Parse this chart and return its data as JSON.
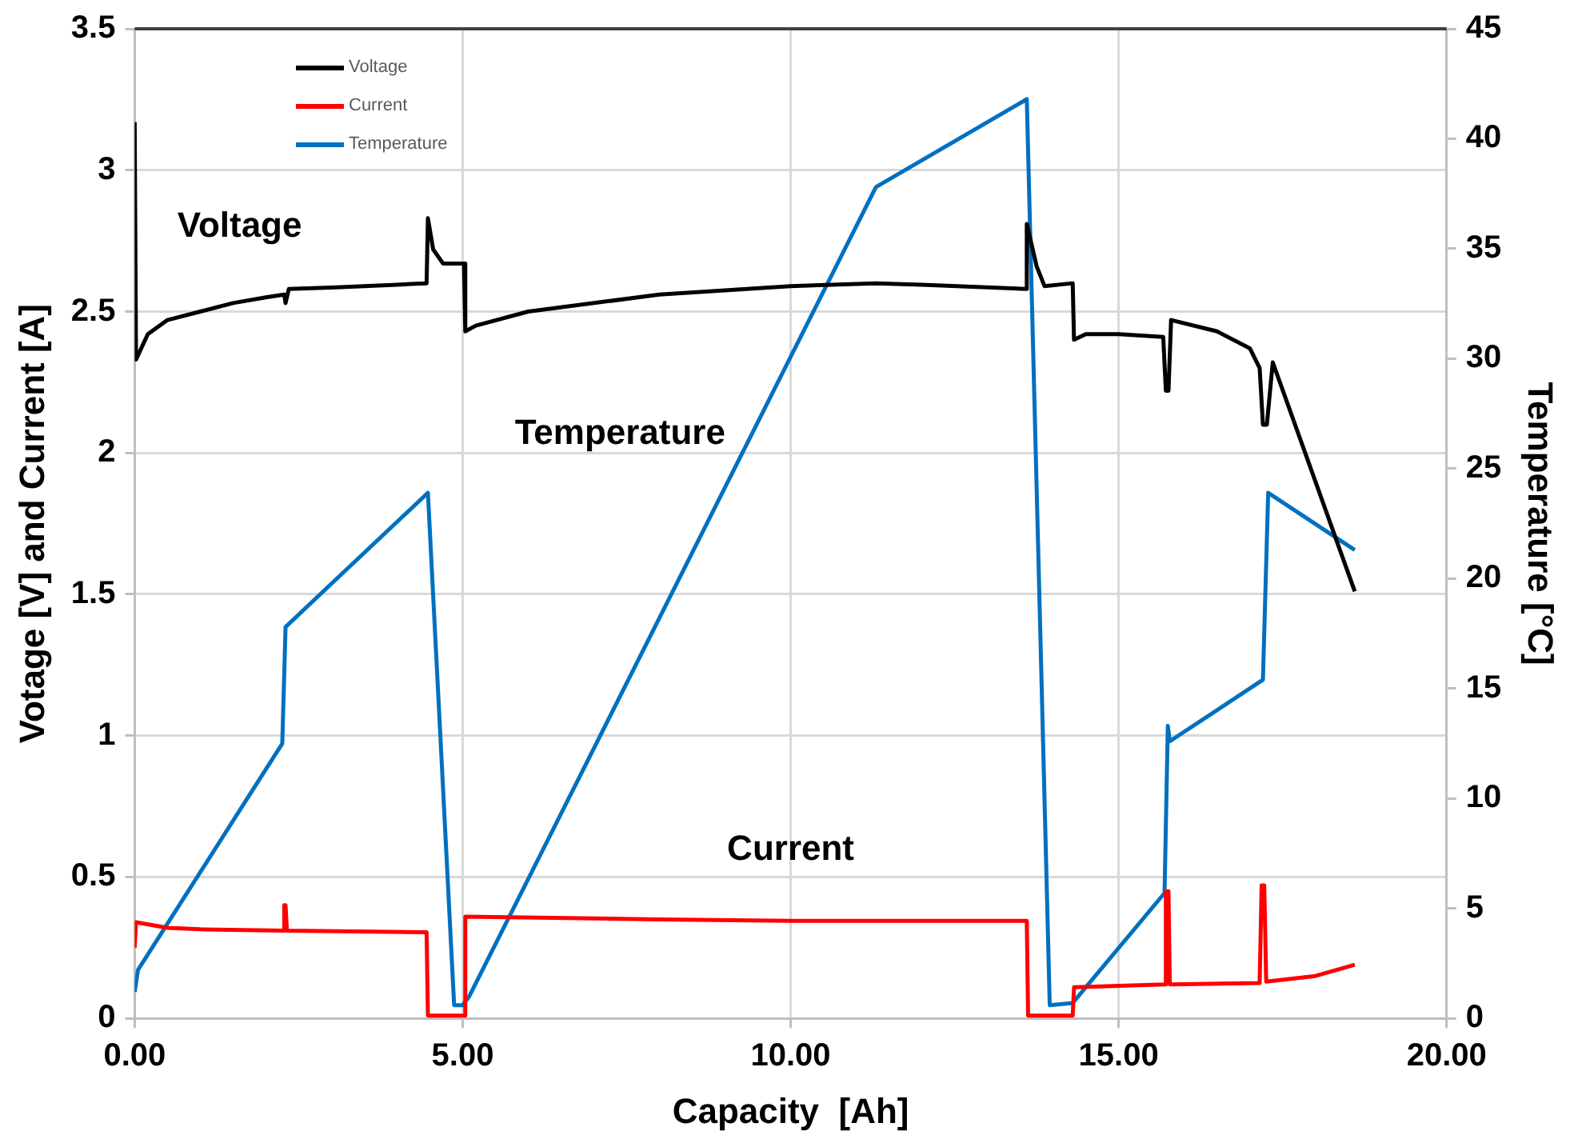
{
  "chart_data": {
    "type": "line",
    "xlabel": "Capacity  [Ah]",
    "ylabel": "Votage [V] and Current [A]",
    "y2label": "Temperature [°C]",
    "xlim": [
      0,
      20
    ],
    "xticks": [
      {
        "value": 0,
        "label": "0.00"
      },
      {
        "value": 5,
        "label": "5.00"
      },
      {
        "value": 10,
        "label": "10.00"
      },
      {
        "value": 15,
        "label": "15.00"
      },
      {
        "value": 20,
        "label": "20.00"
      }
    ],
    "ylim": [
      0,
      3.5
    ],
    "yticks": [
      0,
      0.5,
      1,
      1.5,
      2,
      2.5,
      3,
      3.5
    ],
    "y2lim": [
      0,
      45
    ],
    "y2ticks": [
      0,
      5,
      10,
      15,
      20,
      25,
      30,
      35,
      40,
      45
    ],
    "grid": true,
    "legend": "top left",
    "marker": "none",
    "line_style": "solid",
    "annotations": [
      "Voltage",
      "Temperature",
      "Current"
    ],
    "series": [
      {
        "name": "Voltage",
        "color": "#000000",
        "x": [
          0,
          0.02,
          0.2,
          0.5,
          1,
          1.5,
          2,
          2.28,
          2.3,
          2.35,
          3,
          4,
          4.45,
          4.47,
          4.55,
          4.7,
          5.02,
          5.04,
          5.2,
          6,
          8,
          10,
          11.3,
          12,
          13.58,
          13.6,
          13.75,
          13.87,
          14.3,
          14.32,
          14.5,
          15,
          15.68,
          15.72,
          15.76,
          15.8,
          16.5,
          17,
          17.15,
          17.2,
          17.26,
          17.35,
          18.6
        ],
        "values": [
          3.17,
          2.33,
          2.42,
          2.47,
          2.5,
          2.53,
          2.55,
          2.56,
          2.53,
          2.58,
          2.585,
          2.595,
          2.6,
          2.83,
          2.72,
          2.67,
          2.67,
          2.43,
          2.45,
          2.5,
          2.56,
          2.59,
          2.6,
          2.595,
          2.58,
          2.81,
          2.66,
          2.59,
          2.6,
          2.4,
          2.42,
          2.42,
          2.41,
          2.22,
          2.22,
          2.47,
          2.43,
          2.37,
          2.3,
          2.1,
          2.1,
          2.32,
          1.51
        ]
      },
      {
        "name": "Current",
        "color": "#ff0000",
        "x": [
          0,
          0.02,
          0.5,
          1,
          2.27,
          2.28,
          2.3,
          2.32,
          4.45,
          4.47,
          5.02,
          5.04,
          8,
          10,
          13.6,
          13.62,
          14.3,
          14.32,
          15.7,
          15.72,
          15.76,
          15.78,
          17.15,
          17.18,
          17.22,
          17.25,
          18,
          18.6
        ],
        "values": [
          0.25,
          0.34,
          0.32,
          0.315,
          0.31,
          0.4,
          0.4,
          0.31,
          0.305,
          0.01,
          0.01,
          0.36,
          0.35,
          0.345,
          0.345,
          0.01,
          0.01,
          0.11,
          0.12,
          0.45,
          0.45,
          0.12,
          0.125,
          0.47,
          0.47,
          0.13,
          0.15,
          0.19
        ]
      },
      {
        "name": "Temperature",
        "color": "#0070c0",
        "axis": "y2",
        "x": [
          0,
          0.05,
          2.25,
          2.3,
          4.47,
          4.87,
          5.0,
          5.1,
          11.3,
          13.6,
          13.95,
          14.3,
          15.7,
          15.75,
          15.78,
          17.2,
          17.28,
          18.6
        ],
        "values": [
          1.2,
          2.2,
          12.5,
          17.8,
          23.9,
          0.6,
          0.6,
          1.0,
          37.8,
          41.8,
          0.6,
          0.7,
          5.7,
          13.3,
          12.6,
          15.4,
          23.9,
          21.3
        ]
      }
    ]
  }
}
